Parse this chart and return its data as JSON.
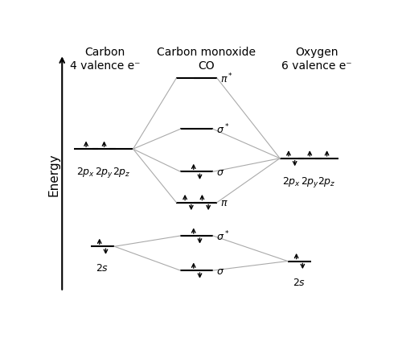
{
  "figsize": [
    5.0,
    4.31
  ],
  "dpi": 100,
  "bg_color": "white",
  "title_co": "Carbon monoxide\nCO",
  "title_carbon": "Carbon\n4 valence e⁻",
  "title_oxygen": "Oxygen\n6 valence e⁻",
  "energy_label": "Energy",
  "connect_color": "#aaaaaa",
  "fontsize_title": 10,
  "fontsize_label": 9,
  "fontsize_orbital": 9
}
